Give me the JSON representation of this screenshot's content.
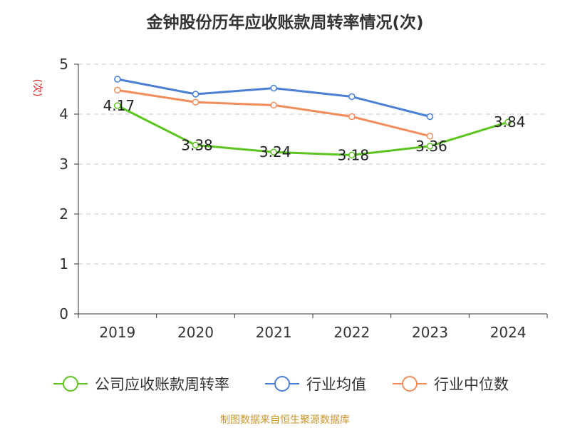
{
  "page": {
    "title": "金钟股份历年应收账款周转率情况(次)",
    "source": "制图数据来自恒生聚源数据库"
  },
  "chart_data": {
    "type": "line",
    "title": "金钟股份历年应收账款周转率情况(次)",
    "ylabel": "(次)",
    "xlabel": "",
    "categories": [
      "2019",
      "2020",
      "2021",
      "2022",
      "2023",
      "2024"
    ],
    "ylim": [
      0,
      5
    ],
    "yticks": [
      0,
      1,
      2,
      3,
      4,
      5
    ],
    "grid": "horizontal-dashed",
    "legend_position": "bottom",
    "series": [
      {
        "name": "公司应收账款周转率",
        "color": "#5cc41f",
        "values": [
          4.17,
          3.38,
          3.24,
          3.18,
          3.36,
          3.84
        ],
        "show_labels": true
      },
      {
        "name": "行业均值",
        "color": "#4a7fd6",
        "values": [
          4.7,
          4.4,
          4.52,
          4.35,
          3.95,
          null
        ],
        "show_labels": false
      },
      {
        "name": "行业中位数",
        "color": "#f28c5a",
        "values": [
          4.48,
          4.24,
          4.18,
          3.95,
          3.56,
          null
        ],
        "show_labels": false
      }
    ]
  }
}
